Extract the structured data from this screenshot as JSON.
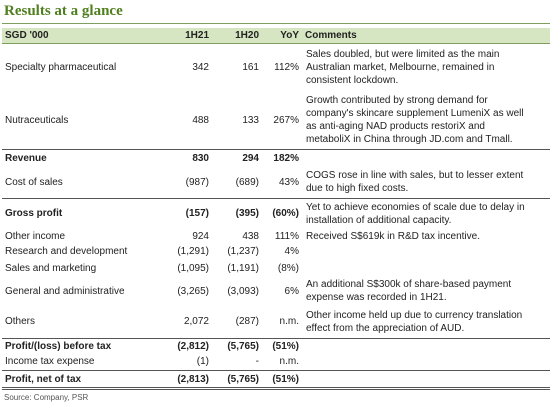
{
  "title": "Results at a glance",
  "table": {
    "header": [
      "SGD '000",
      "1H21",
      "1H20",
      "YoY",
      "Comments"
    ],
    "rows": [
      {
        "cells": [
          "Specialty pharmaceutical",
          "342",
          "161",
          "112%"
        ],
        "comment": [
          "Sales doubled, but were limited as the main",
          "Australian market, Melbourne, remained in",
          "consistent lockdown."
        ],
        "bold": false
      },
      {
        "cells": [
          "Nutraceuticals",
          "488",
          "133",
          "267%"
        ],
        "comment": [
          "Growth contributed by strong demand for",
          "company's skincare supplement LumeniX as well",
          "as anti-aging NAD products restoriX and",
          "metaboliX in China through JD.com and Tmall."
        ],
        "bold": false
      },
      {
        "cells": [
          "Revenue",
          "830",
          "294",
          "182%"
        ],
        "comment": [],
        "bold": true
      },
      {
        "cells": [
          "Cost of sales",
          "(987)",
          "(689)",
          "43%"
        ],
        "comment": [
          "COGS rose in line with sales, but to lesser extent",
          "due to high fixed costs."
        ],
        "bold": false
      },
      {
        "cells": [
          "Gross profit",
          "(157)",
          "(395)",
          "(60%)"
        ],
        "comment": [
          "Yet to achieve economies of scale due to delay in",
          "installation of additional capacity."
        ],
        "bold": true
      },
      {
        "cells": [
          "Other income",
          "924",
          "438",
          "111%"
        ],
        "comment": [
          "Received S$619k in R&D tax incentive."
        ],
        "bold": false
      },
      {
        "cells": [
          "Research and development",
          "(1,291)",
          "(1,237)",
          "4%"
        ],
        "comment": [],
        "bold": false
      },
      {
        "cells": [
          "Sales and marketing",
          "(1,095)",
          "(1,191)",
          "(8%)"
        ],
        "comment": [],
        "bold": false
      },
      {
        "cells": [
          "General and administrative",
          "(3,265)",
          "(3,093)",
          "6%"
        ],
        "comment": [
          "An additional S$300k of share-based payment",
          "expense was recorded in 1H21."
        ],
        "bold": false
      },
      {
        "cells": [
          "Others",
          "2,072",
          "(287)",
          "n.m."
        ],
        "comment": [
          "Other income held up due to currency translation",
          "effect from the appreciation of AUD."
        ],
        "bold": false
      },
      {
        "cells": [
          "Profit/(loss) before tax",
          "(2,812)",
          "(5,765)",
          "(51%)"
        ],
        "comment": [],
        "bold": true
      },
      {
        "cells": [
          "Income tax expense",
          "(1)",
          "-",
          "n.m."
        ],
        "comment": [],
        "bold": false
      },
      {
        "cells": [
          "Profit, net of tax",
          "(2,813)",
          "(5,765)",
          "(51%)"
        ],
        "comment": [],
        "bold": true
      }
    ]
  },
  "source": "Source: Company, PSR"
}
